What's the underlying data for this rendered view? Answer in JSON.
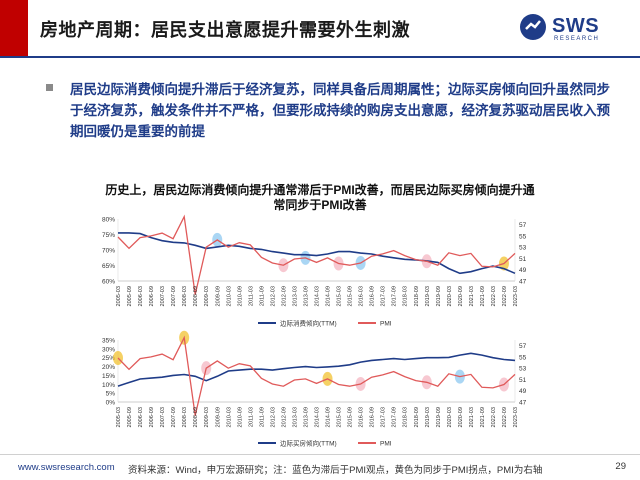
{
  "header": {
    "title": "房地产周期：居民支出意愿提升需要外生刺激",
    "logo_text": "SWS",
    "logo_sub": "RESEARCH",
    "accent": "#c00000",
    "brand": "#1f3c88"
  },
  "bullet": {
    "text": "居民边际消费倾向提升滞后于经济复苏，同样具备后周期属性；边际买房倾向回升虽然同步于经济复苏，触发条件并不严格，但要形成持续的购房支出意愿，经济复苏驱动居民收入预期回暖仍是重要的前提"
  },
  "figure_title": {
    "line1": "历史上，居民边际消费倾向提升通常滞后于PMI改善，而居民边际买房倾向提升通",
    "line2": "常同步于PMI改善"
  },
  "chart_data": [
    {
      "type": "line",
      "x": [
        "2005-03",
        "2005-09",
        "2006-03",
        "2006-09",
        "2007-03",
        "2007-09",
        "2008-03",
        "2008-09",
        "2009-03",
        "2009-09",
        "2010-03",
        "2010-09",
        "2011-03",
        "2011-09",
        "2012-03",
        "2012-09",
        "2013-03",
        "2013-09",
        "2014-03",
        "2014-09",
        "2015-03",
        "2015-09",
        "2016-03",
        "2016-09",
        "2017-03",
        "2017-09",
        "2018-03",
        "2018-09",
        "2019-03",
        "2019-09",
        "2020-03",
        "2020-09",
        "2021-03",
        "2021-09",
        "2022-03",
        "2022-09",
        "2023-03"
      ],
      "series": [
        {
          "name": "边际消费倾向(TTM)",
          "axis": "left",
          "color": "#1f3c88",
          "values": [
            75.5,
            75.5,
            75.3,
            74.0,
            73.0,
            72.5,
            72.3,
            71.5,
            70.5,
            71.0,
            71.5,
            71.2,
            70.5,
            70.2,
            69.5,
            69.0,
            68.5,
            68.5,
            68.2,
            68.7,
            69.5,
            69.5,
            69.0,
            68.7,
            68.0,
            67.5,
            67.0,
            66.8,
            66.5,
            66.0,
            64.0,
            62.5,
            63.0,
            64.0,
            64.8,
            64.0,
            62.5
          ]
        },
        {
          "name": "PMI",
          "axis": "right",
          "color": "#e05a5a",
          "values": [
            54.8,
            52.8,
            54.7,
            55.0,
            55.5,
            54.5,
            58.4,
            44.6,
            53.0,
            54.3,
            53.0,
            53.8,
            53.4,
            51.2,
            50.2,
            49.8,
            50.9,
            51.1,
            50.3,
            51.1,
            50.1,
            49.8,
            50.2,
            51.4,
            51.8,
            52.4,
            51.5,
            50.8,
            50.5,
            49.8,
            52.0,
            51.5,
            51.9,
            49.6,
            49.5,
            50.1,
            51.9
          ]
        }
      ],
      "yleft": {
        "ticks": [
          "80%",
          "75%",
          "70%",
          "65%",
          "60%"
        ],
        "lim": [
          60,
          80
        ]
      },
      "yright": {
        "ticks": [
          "57",
          "55",
          "53",
          "51",
          "49",
          "47"
        ],
        "lim": [
          47,
          58
        ]
      },
      "legend": "bottom",
      "highlights": [
        {
          "x": "2009-09",
          "color": "#8ec8f0"
        },
        {
          "x": "2012-09",
          "color": "#f4b6c2"
        },
        {
          "x": "2013-09",
          "color": "#8ec8f0"
        },
        {
          "x": "2015-03",
          "color": "#f4b6c2"
        },
        {
          "x": "2016-03",
          "color": "#8ec8f0"
        },
        {
          "x": "2019-03",
          "color": "#f4b6c2"
        },
        {
          "x": "2022-09",
          "color": "#f2c230"
        }
      ]
    },
    {
      "type": "line",
      "x": [
        "2005-03",
        "2005-09",
        "2006-03",
        "2006-09",
        "2007-03",
        "2007-09",
        "2008-03",
        "2008-09",
        "2009-03",
        "2009-09",
        "2010-03",
        "2010-09",
        "2011-03",
        "2011-09",
        "2012-03",
        "2012-09",
        "2013-03",
        "2013-09",
        "2014-03",
        "2014-09",
        "2015-03",
        "2015-09",
        "2016-03",
        "2016-09",
        "2017-03",
        "2017-09",
        "2018-03",
        "2018-09",
        "2019-03",
        "2019-09",
        "2020-03",
        "2020-09",
        "2021-03",
        "2021-09",
        "2022-03",
        "2022-09",
        "2023-03"
      ],
      "series": [
        {
          "name": "边际买房倾向(TTM)",
          "axis": "left",
          "color": "#1f3c88",
          "values": [
            9.0,
            11.0,
            13.0,
            13.5,
            14.0,
            15.0,
            15.5,
            14.5,
            12.0,
            14.5,
            17.5,
            18.0,
            18.5,
            18.5,
            18.0,
            18.8,
            19.5,
            20.0,
            19.5,
            19.8,
            20.2,
            21.0,
            22.5,
            23.5,
            24.0,
            24.5,
            24.0,
            24.5,
            25.0,
            25.0,
            25.2,
            26.5,
            27.5,
            26.5,
            25.0,
            24.0,
            23.5
          ]
        },
        {
          "name": "PMI",
          "axis": "right",
          "color": "#e05a5a",
          "values": [
            54.8,
            52.8,
            54.7,
            55.0,
            55.5,
            54.5,
            58.4,
            44.6,
            53.0,
            54.3,
            53.0,
            53.8,
            53.4,
            51.2,
            50.2,
            49.8,
            50.9,
            51.1,
            50.3,
            51.1,
            50.1,
            49.8,
            50.2,
            51.4,
            51.8,
            52.4,
            51.5,
            50.8,
            50.5,
            49.8,
            52.0,
            51.5,
            51.9,
            49.6,
            49.5,
            50.1,
            51.9
          ]
        }
      ],
      "yleft": {
        "ticks": [
          "35%",
          "30%",
          "25%",
          "20%",
          "15%",
          "10%",
          "5%",
          "0%"
        ],
        "lim": [
          0,
          35
        ]
      },
      "yright": {
        "ticks": [
          "57",
          "55",
          "53",
          "51",
          "49",
          "47"
        ],
        "lim": [
          47,
          58
        ]
      },
      "legend": "bottom",
      "highlights": [
        {
          "x": "2005-03",
          "color": "#f2c230"
        },
        {
          "x": "2008-03",
          "color": "#f2c230"
        },
        {
          "x": "2009-03",
          "color": "#f4b6c2"
        },
        {
          "x": "2014-09",
          "color": "#f2c230"
        },
        {
          "x": "2016-03",
          "color": "#f4b6c2"
        },
        {
          "x": "2019-03",
          "color": "#f4b6c2"
        },
        {
          "x": "2020-09",
          "color": "#8ec8f0"
        },
        {
          "x": "2022-09",
          "color": "#f4b6c2"
        }
      ]
    }
  ],
  "footer": {
    "url": "www.swsresearch.com",
    "note": "资料来源：Wind，申万宏源研究；注：蓝色为滞后于PMI观点，黄色为同步于PMI拐点，PMI为右轴",
    "page": "29"
  }
}
